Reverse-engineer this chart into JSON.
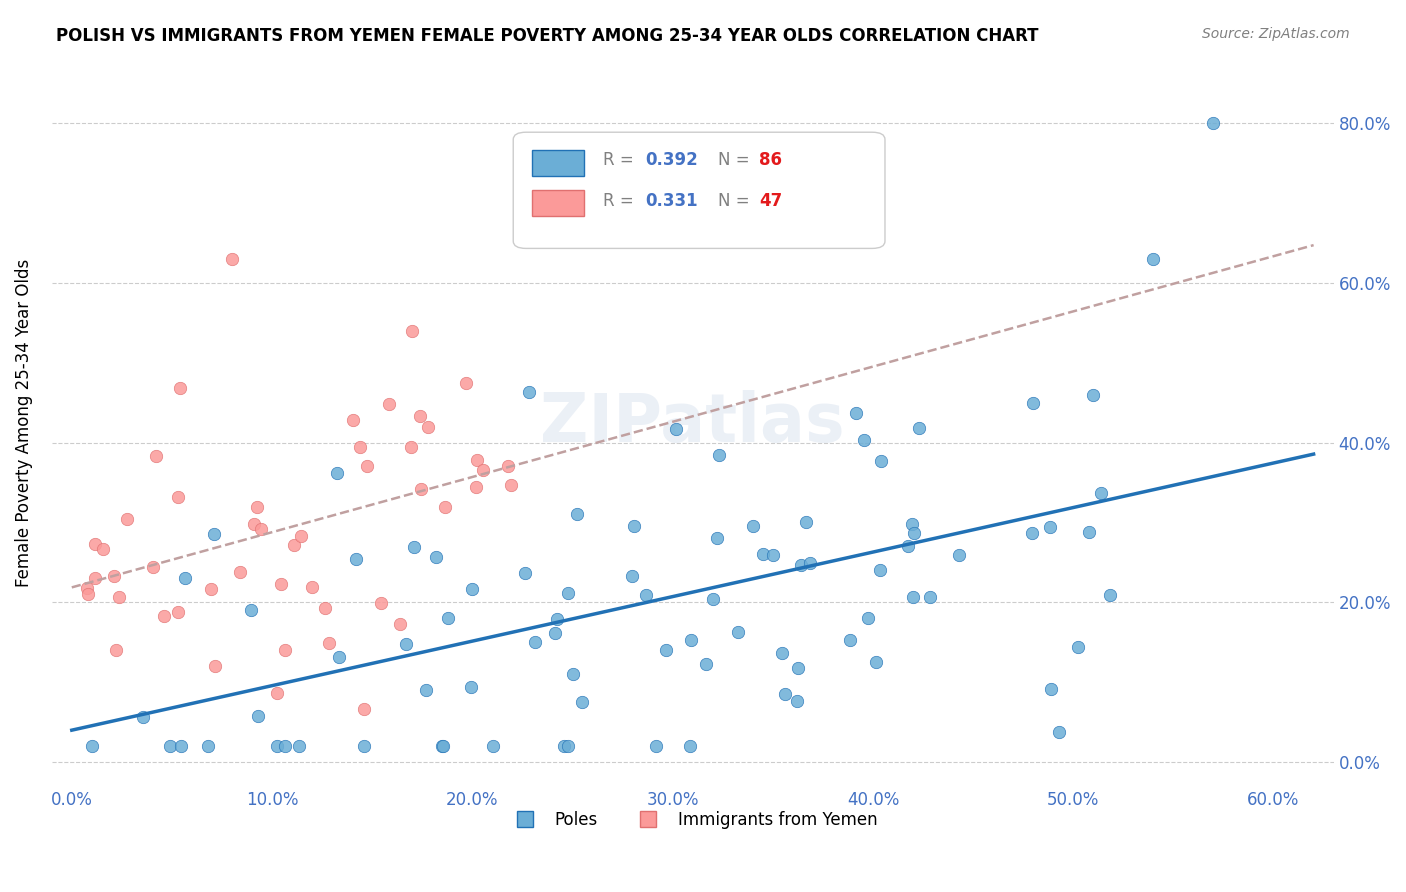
{
  "title": "POLISH VS IMMIGRANTS FROM YEMEN FEMALE POVERTY AMONG 25-34 YEAR OLDS CORRELATION CHART",
  "source": "Source: ZipAtlas.com",
  "ylabel": "Female Poverty Among 25-34 Year Olds",
  "xlim": [
    0.0,
    0.62
  ],
  "ylim": [
    -0.03,
    0.88
  ],
  "poles_color": "#6baed6",
  "poles_color_dark": "#2171b5",
  "yemen_color": "#fb9a99",
  "yemen_color_edge": "#e07070",
  "poles_R": 0.392,
  "poles_N": 86,
  "yemen_R": 0.331,
  "yemen_N": 47,
  "watermark": "ZIPatlas",
  "xtick_vals": [
    0.0,
    0.1,
    0.2,
    0.3,
    0.4,
    0.5,
    0.6
  ],
  "xtick_labels": [
    "0.0%",
    "10.0%",
    "20.0%",
    "30.0%",
    "40.0%",
    "50.0%",
    "60.0%"
  ],
  "ytick_vals": [
    0.0,
    0.2,
    0.4,
    0.6,
    0.8
  ],
  "ytick_labels": [
    "0.0%",
    "20.0%",
    "40.0%",
    "60.0%",
    "80.0%"
  ]
}
